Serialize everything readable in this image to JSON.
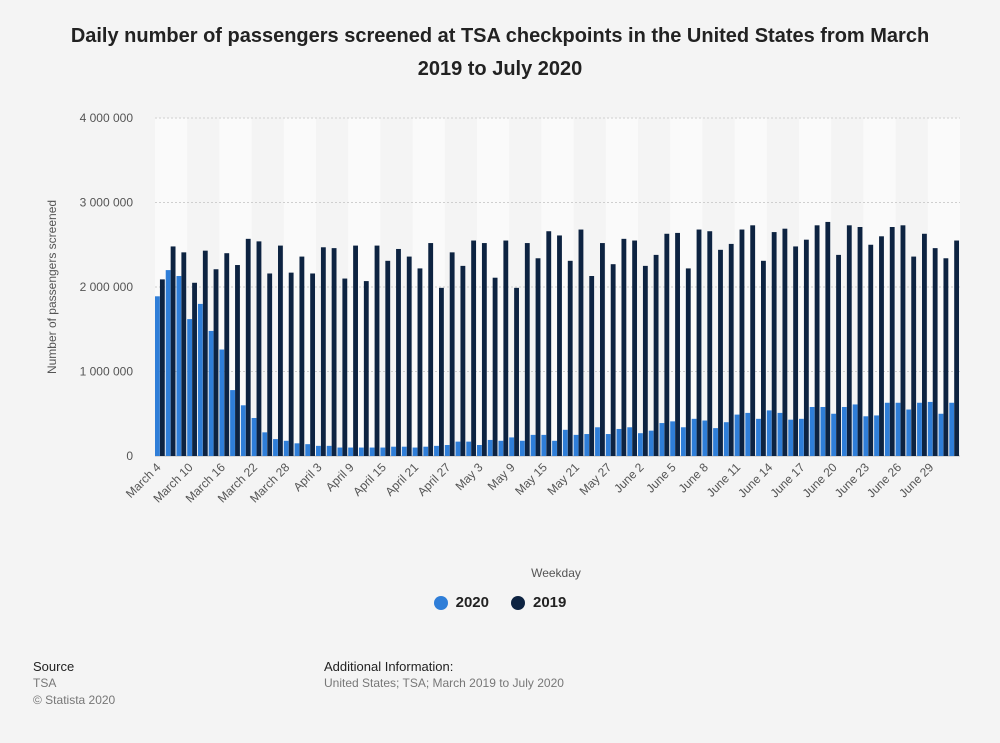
{
  "title": "Daily number of passengers screened at TSA checkpoints in the United States from March 2019 to July 2020",
  "footer": {
    "source_heading": "Source",
    "source_text": "TSA",
    "copyright": "© Statista 2020",
    "info_heading": "Additional Information:",
    "info_text": "United States; TSA; March 2019 to July 2020"
  },
  "colors": {
    "s2020": "#2f7ed8",
    "s2019": "#0d2341",
    "band": "#fafafa"
  },
  "chart_data": {
    "type": "bar",
    "xlabel": "Weekday",
    "ylabel": "Number of passengers screened",
    "ylim": [
      0,
      4000000
    ],
    "yticks": [
      {
        "value": 0,
        "label": "0"
      },
      {
        "value": 1000000,
        "label": "1 000 000"
      },
      {
        "value": 2000000,
        "label": "2 000 000"
      },
      {
        "value": 3000000,
        "label": "3 000 000"
      },
      {
        "value": 4000000,
        "label": "4 000 000"
      }
    ],
    "grid": true,
    "legend_position": "bottom-center",
    "xtick_labels": [
      {
        "index": 0,
        "label": "March 4"
      },
      {
        "index": 3,
        "label": "March 10"
      },
      {
        "index": 6,
        "label": "March 16"
      },
      {
        "index": 9,
        "label": "March 22"
      },
      {
        "index": 12,
        "label": "March 28"
      },
      {
        "index": 15,
        "label": "April 3"
      },
      {
        "index": 18,
        "label": "April 9"
      },
      {
        "index": 21,
        "label": "April 15"
      },
      {
        "index": 24,
        "label": "April 21"
      },
      {
        "index": 27,
        "label": "April 27"
      },
      {
        "index": 30,
        "label": "May 3"
      },
      {
        "index": 33,
        "label": "May 9"
      },
      {
        "index": 36,
        "label": "May 15"
      },
      {
        "index": 39,
        "label": "May 21"
      },
      {
        "index": 42,
        "label": "May 27"
      },
      {
        "index": 45,
        "label": "June 2"
      },
      {
        "index": 48,
        "label": "June 5"
      },
      {
        "index": 51,
        "label": "June 8"
      },
      {
        "index": 54,
        "label": "June 11"
      },
      {
        "index": 57,
        "label": "June 14"
      },
      {
        "index": 60,
        "label": "June 17"
      },
      {
        "index": 63,
        "label": "June 20"
      },
      {
        "index": 66,
        "label": "June 23"
      },
      {
        "index": 69,
        "label": "June 26"
      },
      {
        "index": 72,
        "label": "June 29"
      }
    ],
    "series": [
      {
        "name": "2020",
        "values": [
          1890000,
          2200000,
          2130000,
          1620000,
          1800000,
          1480000,
          1260000,
          780000,
          600000,
          450000,
          280000,
          200000,
          180000,
          150000,
          140000,
          120000,
          120000,
          100000,
          100000,
          100000,
          100000,
          100000,
          110000,
          110000,
          100000,
          110000,
          120000,
          130000,
          170000,
          170000,
          130000,
          190000,
          180000,
          220000,
          180000,
          250000,
          250000,
          180000,
          310000,
          250000,
          260000,
          340000,
          260000,
          320000,
          340000,
          270000,
          300000,
          390000,
          410000,
          340000,
          440000,
          420000,
          330000,
          400000,
          490000,
          510000,
          440000,
          540000,
          510000,
          430000,
          440000,
          580000,
          580000,
          500000,
          580000,
          610000,
          470000,
          480000,
          630000,
          630000,
          550000,
          630000,
          640000,
          500000,
          630000
        ]
      },
      {
        "name": "2019",
        "values": [
          2090000,
          2480000,
          2410000,
          2050000,
          2430000,
          2210000,
          2400000,
          2260000,
          2570000,
          2540000,
          2160000,
          2490000,
          2170000,
          2360000,
          2160000,
          2470000,
          2460000,
          2100000,
          2490000,
          2070000,
          2490000,
          2310000,
          2450000,
          2360000,
          2220000,
          2520000,
          1990000,
          2410000,
          2250000,
          2550000,
          2520000,
          2110000,
          2550000,
          1990000,
          2520000,
          2340000,
          2660000,
          2610000,
          2310000,
          2680000,
          2130000,
          2520000,
          2270000,
          2570000,
          2550000,
          2250000,
          2380000,
          2630000,
          2640000,
          2220000,
          2680000,
          2660000,
          2440000,
          2510000,
          2680000,
          2730000,
          2310000,
          2650000,
          2690000,
          2480000,
          2560000,
          2730000,
          2770000,
          2380000,
          2730000,
          2710000,
          2500000,
          2600000,
          2710000,
          2730000,
          2360000,
          2630000,
          2460000,
          2340000,
          2550000
        ]
      }
    ]
  }
}
